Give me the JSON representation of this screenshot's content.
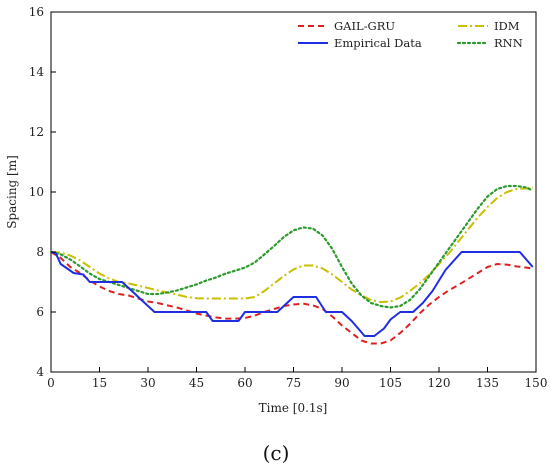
{
  "chart_data": {
    "type": "line",
    "xlabel": "Time [0.1s]",
    "ylabel": "Spacing [m]",
    "xlim": [
      0,
      150
    ],
    "ylim": [
      4,
      16
    ],
    "xticks": [
      0,
      15,
      30,
      45,
      60,
      75,
      90,
      105,
      120,
      135,
      150
    ],
    "yticks": [
      4,
      6,
      8,
      10,
      12,
      14,
      16
    ],
    "grid": false,
    "legend_position": "top-right",
    "panel_label": "(c)",
    "series": [
      {
        "name": "GAIL-GRU",
        "color": "#e02020",
        "style": "dashed",
        "x": [
          0,
          3,
          6,
          9,
          12,
          15,
          18,
          21,
          24,
          27,
          30,
          33,
          36,
          39,
          42,
          45,
          48,
          51,
          54,
          57,
          60,
          63,
          66,
          69,
          72,
          75,
          78,
          81,
          84,
          87,
          90,
          93,
          96,
          99,
          102,
          105,
          108,
          111,
          114,
          117,
          120,
          123,
          126,
          129,
          132,
          135,
          138,
          141,
          144,
          147,
          149
        ],
        "y": [
          8.0,
          7.8,
          7.5,
          7.3,
          7.05,
          6.85,
          6.7,
          6.6,
          6.55,
          6.45,
          6.35,
          6.3,
          6.22,
          6.15,
          6.05,
          5.95,
          5.88,
          5.82,
          5.78,
          5.78,
          5.8,
          5.88,
          6.0,
          6.1,
          6.2,
          6.25,
          6.28,
          6.22,
          6.1,
          5.85,
          5.55,
          5.3,
          5.05,
          4.95,
          4.95,
          5.05,
          5.3,
          5.6,
          5.95,
          6.25,
          6.5,
          6.72,
          6.9,
          7.1,
          7.3,
          7.5,
          7.6,
          7.58,
          7.52,
          7.48,
          7.45
        ]
      },
      {
        "name": "Empirical Data",
        "color": "#1f2fe0",
        "style": "solid",
        "x": [
          0,
          1.5,
          3,
          5,
          7,
          10,
          12,
          14,
          16,
          18,
          20,
          22,
          24,
          26,
          28,
          30,
          32,
          35,
          40,
          45,
          48,
          50,
          55,
          58,
          60,
          65,
          70,
          75,
          78,
          82,
          85,
          90,
          93,
          95,
          97,
          100,
          103,
          105,
          108,
          112,
          115,
          118,
          122,
          127,
          130,
          135,
          140,
          145,
          149
        ],
        "y": [
          8.0,
          7.95,
          7.6,
          7.45,
          7.3,
          7.25,
          7.0,
          7.0,
          7.0,
          7.0,
          7.0,
          7.0,
          6.8,
          6.6,
          6.4,
          6.2,
          6.0,
          6.0,
          6.0,
          6.0,
          6.0,
          5.7,
          5.7,
          5.7,
          6.0,
          6.0,
          6.0,
          6.5,
          6.5,
          6.5,
          6.0,
          6.0,
          5.7,
          5.45,
          5.2,
          5.2,
          5.45,
          5.75,
          6.0,
          6.0,
          6.3,
          6.7,
          7.4,
          8.0,
          8.0,
          8.0,
          8.0,
          8.0,
          7.5
        ]
      },
      {
        "name": "IDM",
        "color": "#c8c000",
        "style": "dashdot",
        "x": [
          0,
          3,
          6,
          9,
          12,
          15,
          18,
          21,
          24,
          27,
          30,
          33,
          36,
          39,
          42,
          45,
          48,
          51,
          54,
          57,
          60,
          63,
          66,
          69,
          72,
          75,
          78,
          81,
          84,
          87,
          90,
          93,
          96,
          99,
          102,
          105,
          108,
          111,
          114,
          117,
          120,
          123,
          126,
          129,
          132,
          135,
          138,
          141,
          144,
          147,
          149
        ],
        "y": [
          8.0,
          7.98,
          7.88,
          7.72,
          7.5,
          7.28,
          7.12,
          7.0,
          6.95,
          6.88,
          6.8,
          6.72,
          6.65,
          6.58,
          6.5,
          6.46,
          6.45,
          6.45,
          6.45,
          6.45,
          6.45,
          6.5,
          6.7,
          6.95,
          7.2,
          7.42,
          7.55,
          7.55,
          7.45,
          7.25,
          7.0,
          6.75,
          6.55,
          6.4,
          6.33,
          6.35,
          6.48,
          6.7,
          6.95,
          7.25,
          7.6,
          7.95,
          8.35,
          8.75,
          9.15,
          9.5,
          9.8,
          10.0,
          10.1,
          10.12,
          10.15
        ]
      },
      {
        "name": "RNN",
        "color": "#2e9a2e",
        "style": "dotted",
        "x": [
          0,
          3,
          6,
          9,
          12,
          15,
          18,
          21,
          24,
          27,
          30,
          33,
          36,
          39,
          42,
          45,
          48,
          51,
          54,
          57,
          60,
          63,
          66,
          69,
          72,
          75,
          78,
          81,
          84,
          87,
          90,
          93,
          96,
          99,
          102,
          105,
          108,
          111,
          114,
          117,
          120,
          123,
          126,
          129,
          132,
          135,
          138,
          141,
          144,
          147,
          149
        ],
        "y": [
          8.0,
          7.92,
          7.75,
          7.52,
          7.28,
          7.1,
          7.0,
          6.9,
          6.8,
          6.7,
          6.6,
          6.6,
          6.65,
          6.72,
          6.82,
          6.92,
          7.05,
          7.15,
          7.28,
          7.38,
          7.48,
          7.65,
          7.92,
          8.2,
          8.5,
          8.72,
          8.82,
          8.78,
          8.55,
          8.1,
          7.5,
          6.95,
          6.55,
          6.3,
          6.2,
          6.15,
          6.2,
          6.4,
          6.75,
          7.2,
          7.65,
          8.1,
          8.55,
          9.0,
          9.45,
          9.85,
          10.1,
          10.2,
          10.2,
          10.15,
          10.05
        ]
      }
    ]
  }
}
